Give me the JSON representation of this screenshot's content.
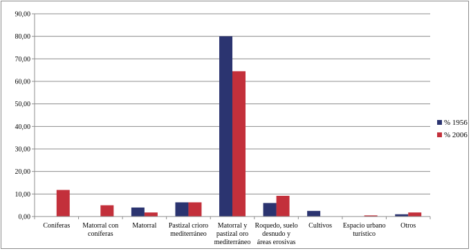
{
  "chart_data": {
    "type": "bar",
    "title": "",
    "xlabel": "",
    "ylabel": "",
    "ylim": [
      0,
      90
    ],
    "y_ticks": [
      "0,00",
      "10,00",
      "20,00",
      "30,00",
      "40,00",
      "50,00",
      "60,00",
      "70,00",
      "80,00",
      "90,00"
    ],
    "grid": true,
    "legend_position": "right",
    "categories": [
      "Coníferas",
      "Matorral con coníferas",
      "Matorral",
      "Pastizal crioro mediterráneo",
      "Matorral y pastizal oro mediterráneo",
      "Roquedo, suelo desnudo y áreas erosivas",
      "Cultivos",
      "Espacio urbano turístico",
      "Otros"
    ],
    "category_lines": [
      [
        "Coníferas"
      ],
      [
        "Matorral con",
        "coníferas"
      ],
      [
        "Matorral"
      ],
      [
        "Pastizal crioro",
        "mediterráneo"
      ],
      [
        "Matorral y",
        "pastizal oro",
        "mediterráneo"
      ],
      [
        "Roquedo, suelo",
        "desnudo y",
        "áreas erosivas"
      ],
      [
        "Cultivos"
      ],
      [
        "Espacio urbano",
        "turístico"
      ],
      [
        "Otros"
      ]
    ],
    "series": [
      {
        "name": "% 1956",
        "color": "#2b3470",
        "values": [
          0,
          0,
          4.0,
          6.3,
          80.0,
          6.0,
          2.5,
          0,
          1.0
        ]
      },
      {
        "name": "% 2006",
        "color": "#c3303b",
        "values": [
          11.8,
          5.0,
          1.8,
          6.3,
          64.5,
          9.2,
          0,
          0.5,
          1.8
        ]
      }
    ]
  }
}
